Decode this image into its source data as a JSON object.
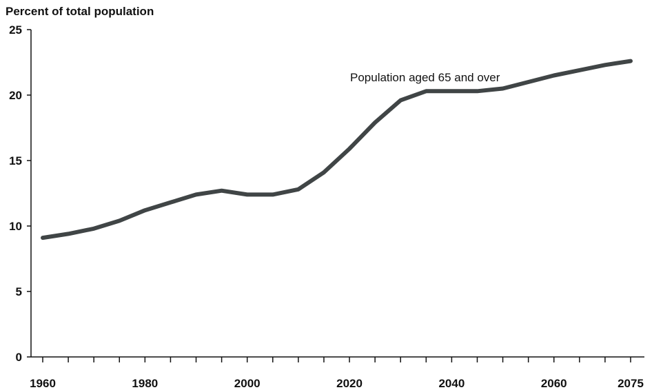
{
  "chart_data": {
    "type": "line",
    "ylabel": "Percent of total population",
    "xlabel": "",
    "ylim": [
      0,
      25
    ],
    "xlim": [
      1960,
      2075
    ],
    "y_ticks": [
      0,
      5,
      10,
      15,
      20,
      25
    ],
    "x_ticks": [
      1960,
      1980,
      2000,
      2020,
      2040,
      2060,
      2075
    ],
    "x_minor_ticks": [
      1965,
      1970,
      1975,
      1985,
      1990,
      1995,
      2005,
      2010,
      2015,
      2025,
      2030,
      2035,
      2045,
      2050,
      2055,
      2065,
      2070
    ],
    "grid": false,
    "line_color": "#404546",
    "series": [
      {
        "annotation": "Population aged 65 and over",
        "x": [
          1960,
          1965,
          1970,
          1975,
          1980,
          1985,
          1990,
          1995,
          2000,
          2005,
          2010,
          2015,
          2020,
          2025,
          2030,
          2035,
          2040,
          2045,
          2050,
          2055,
          2060,
          2065,
          2070,
          2075
        ],
        "y": [
          9.1,
          9.4,
          9.8,
          10.4,
          11.2,
          11.8,
          12.4,
          12.7,
          12.4,
          12.4,
          12.8,
          14.1,
          15.9,
          17.9,
          19.6,
          20.3,
          20.3,
          20.3,
          20.5,
          21.0,
          21.5,
          21.9,
          22.3,
          22.6
        ]
      }
    ]
  }
}
